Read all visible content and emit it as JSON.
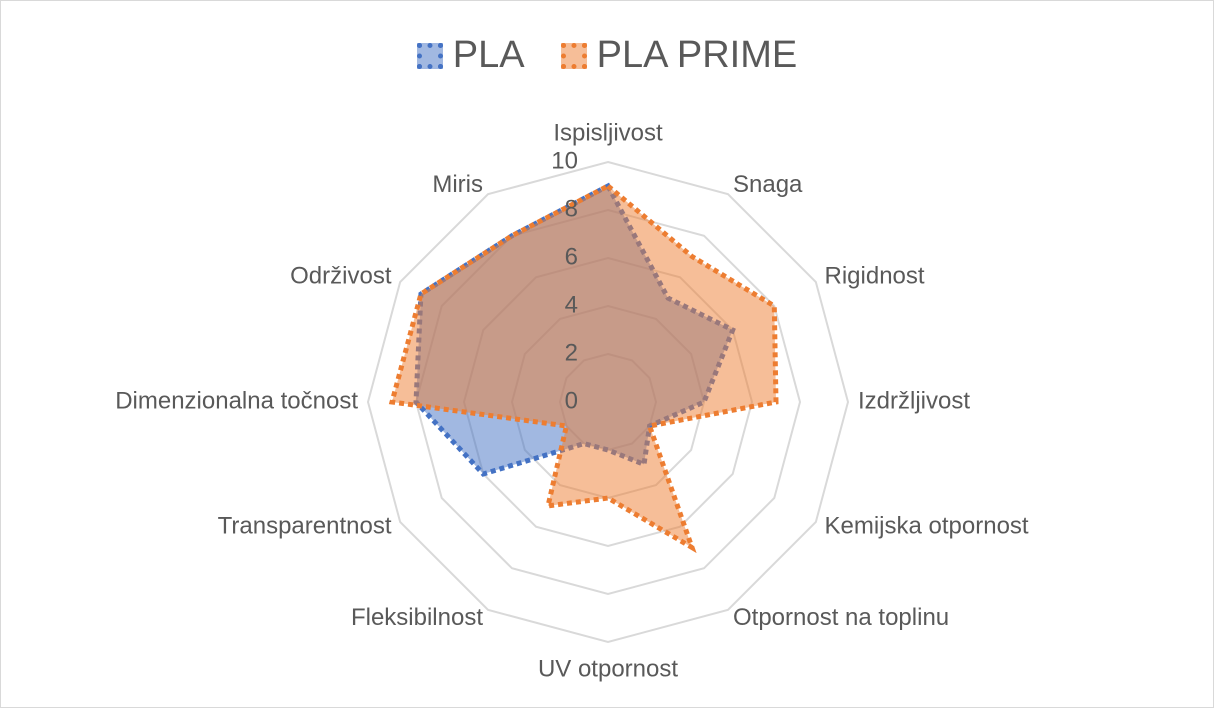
{
  "chart_data": {
    "type": "radar",
    "categories": [
      "Ispisljivost",
      "Snaga",
      "Rigidnost",
      "Izdržljivost",
      "Kemijska otpornost",
      "Otpornost na toplinu",
      "UV otpornost",
      "Fleksibilnost",
      "Transparentnost",
      "Dimenzionalna točnost",
      "Održivost",
      "Miris"
    ],
    "series": [
      {
        "name": "PLA",
        "color": "#4472C4",
        "values": [
          9,
          5,
          6,
          4,
          2,
          3,
          2,
          2,
          6,
          8,
          9,
          8
        ]
      },
      {
        "name": "PLA PRIME",
        "color": "#ED7D31",
        "values": [
          9,
          7,
          8,
          7,
          2,
          7,
          4,
          5,
          2,
          9,
          9,
          8
        ]
      }
    ],
    "rlim": [
      0,
      10
    ],
    "tick_labels": [
      "0",
      "2",
      "4",
      "6",
      "8",
      "10"
    ],
    "grid": true,
    "legend_position": "top",
    "title": ""
  }
}
